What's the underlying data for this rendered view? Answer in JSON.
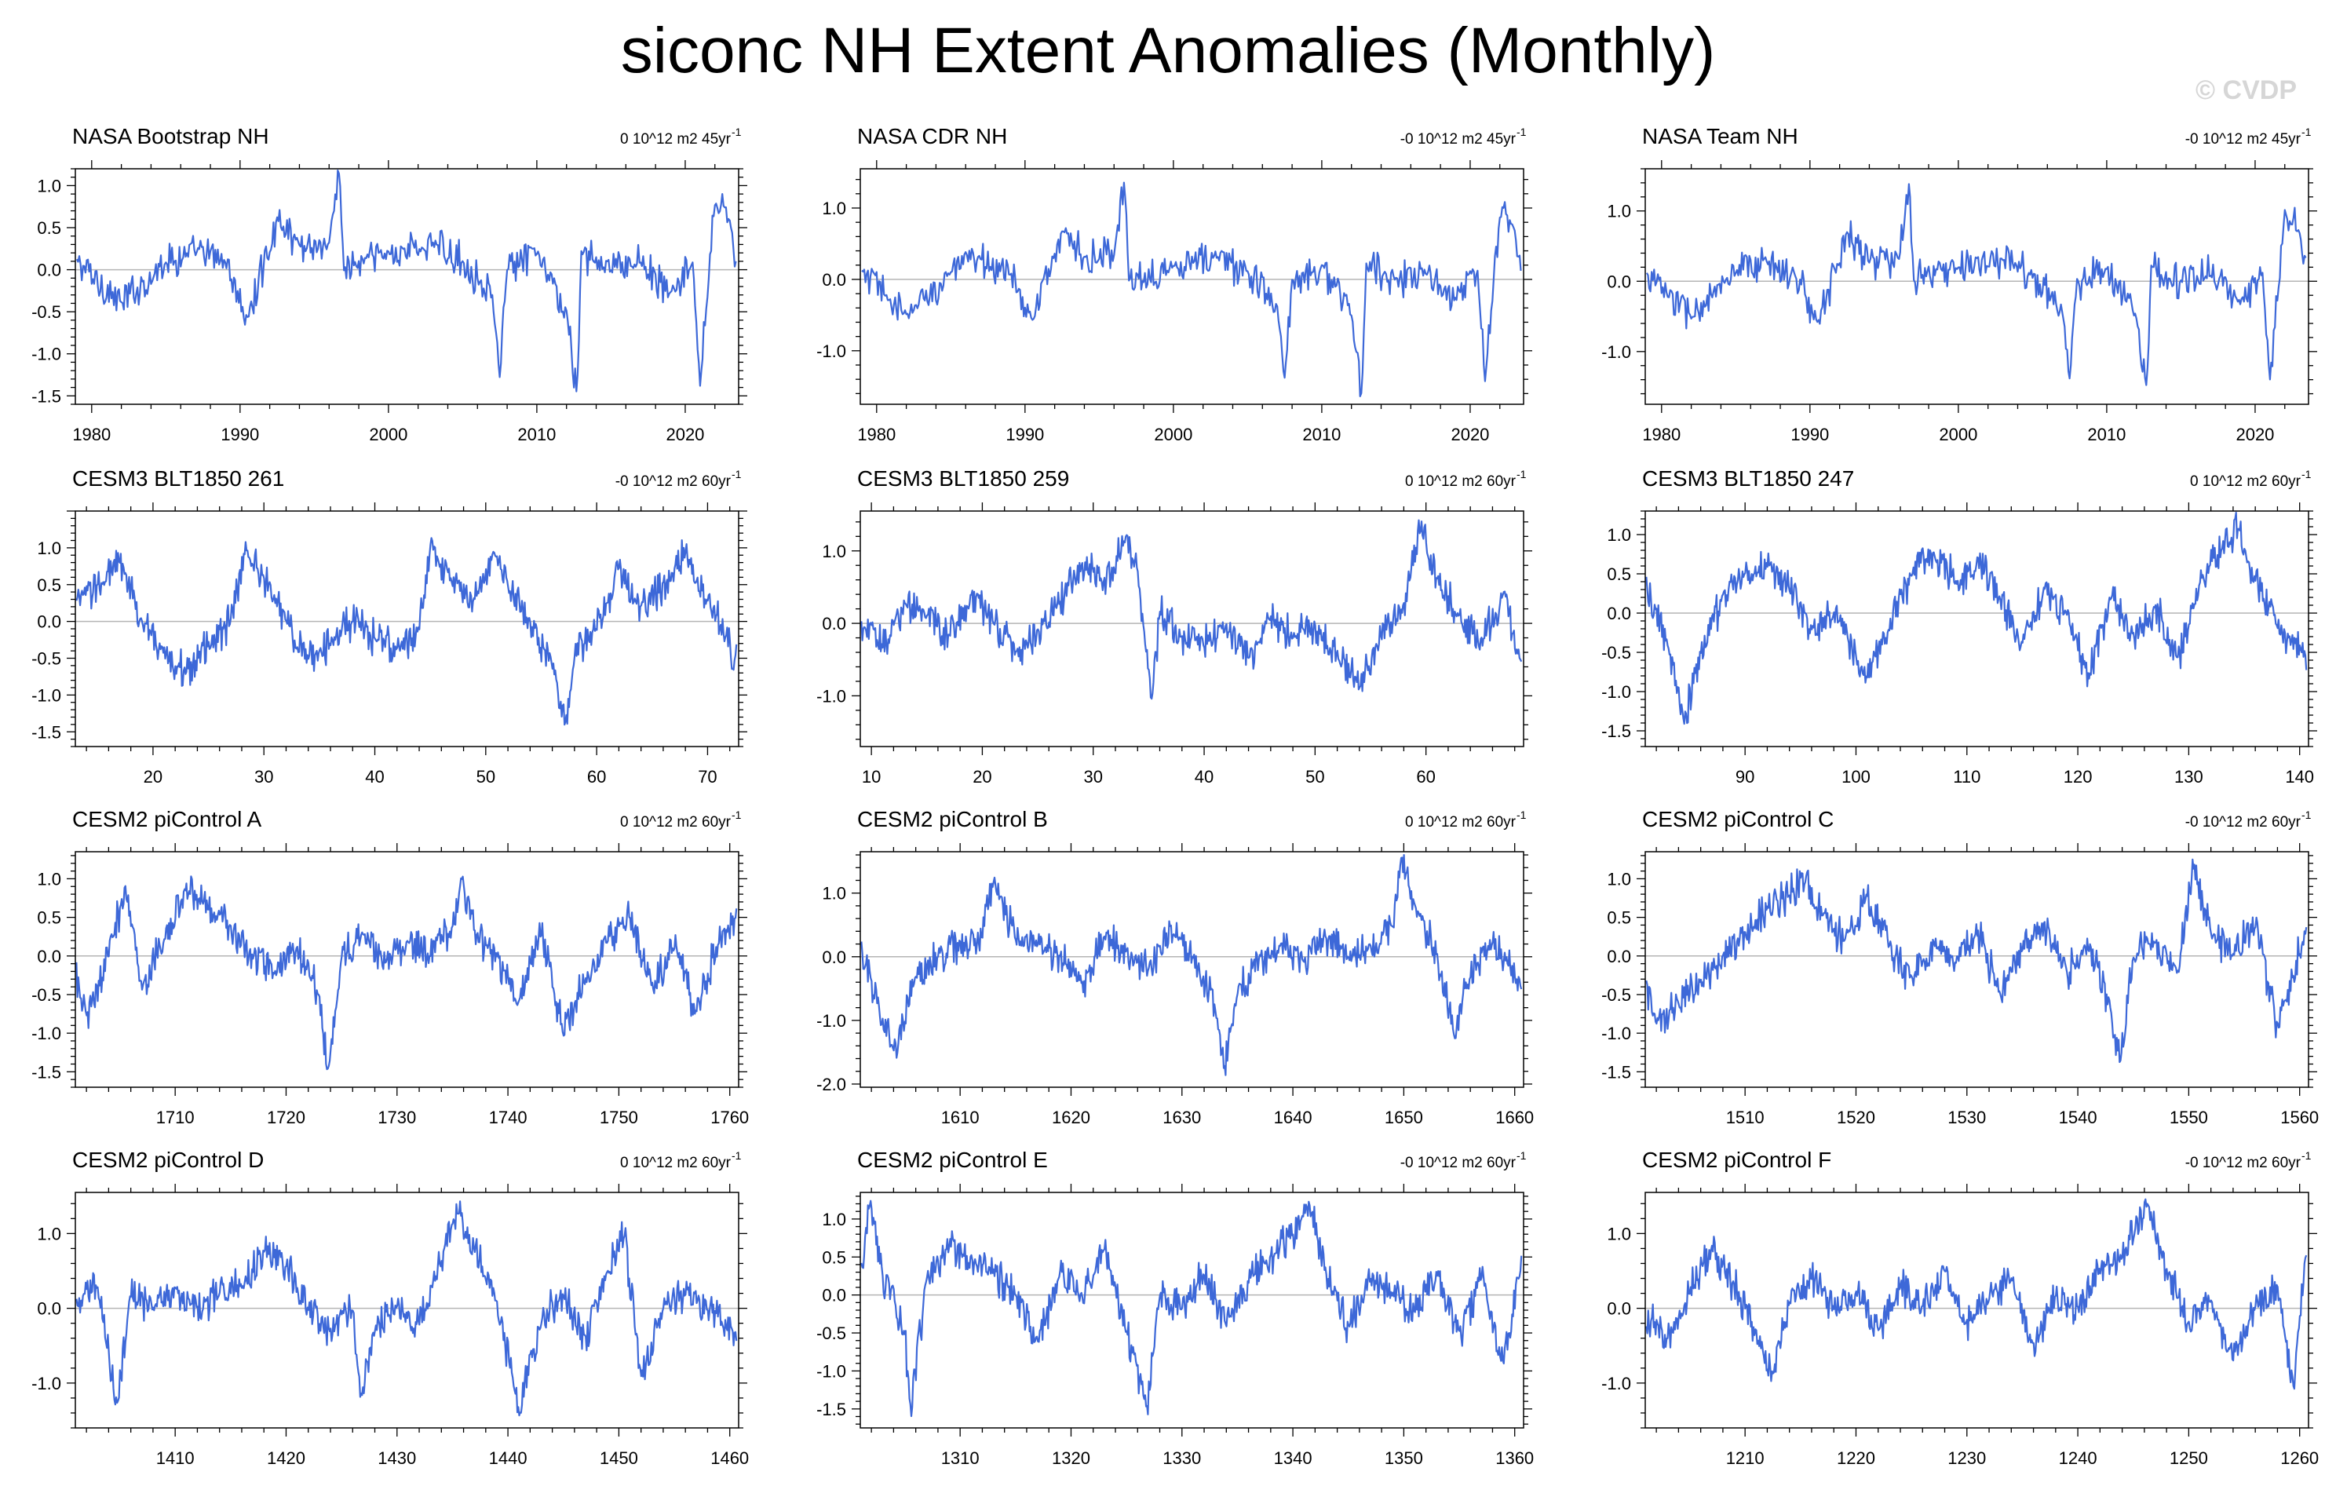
{
  "title": "siconc NH Extent Anomalies (Monthly)",
  "watermark": "© CVDP",
  "colors": {
    "line": "#3d68d8",
    "frame": "#000000",
    "zero": "#b4b4b4"
  },
  "chart_data": [
    {
      "type": "line",
      "title": "NASA Bootstrap NH",
      "trend": "0 10^12 m2 45yr",
      "trend_sup": "-1",
      "xlim": [
        1978.9,
        2023.6
      ],
      "ylim": [
        -1.6,
        1.2
      ],
      "xticks": [
        1980,
        1990,
        2000,
        2010,
        2020
      ],
      "xtick_labels": [
        "1980",
        "1990",
        "2000",
        "2010",
        "2020"
      ],
      "yticks": [
        -1.5,
        -1.0,
        -0.5,
        0.0,
        0.5,
        1.0
      ],
      "ytick_labels": [
        "-1.5",
        "-1.0",
        "-0.5",
        "0.0",
        "0.5",
        "1.0"
      ],
      "x": [
        1979,
        1982,
        1985,
        1987,
        1989,
        1990.5,
        1992.5,
        1994,
        1996,
        1996.7,
        1997,
        2000,
        2003,
        2005,
        2007,
        2007.5,
        2008,
        2010,
        2012,
        2012.7,
        2013,
        2015,
        2017,
        2019,
        2020.5,
        2021,
        2022,
        2023,
        2023.5
      ],
      "y": [
        0.1,
        -0.4,
        0.1,
        0.2,
        0.1,
        -0.6,
        0.6,
        0.3,
        0.3,
        1.2,
        0.0,
        0.2,
        0.3,
        0.1,
        -0.3,
        -1.3,
        0.0,
        0.2,
        -0.5,
        -1.5,
        0.2,
        0.0,
        0.1,
        -0.3,
        0.1,
        -1.4,
        0.8,
        0.6,
        0.0
      ]
    },
    {
      "type": "line",
      "title": "NASA CDR NH",
      "trend": "-0 10^12 m2 45yr",
      "trend_sup": "-1",
      "xlim": [
        1978.9,
        2023.6
      ],
      "ylim": [
        -1.75,
        1.55
      ],
      "xticks": [
        1980,
        1990,
        2000,
        2010,
        2020
      ],
      "xtick_labels": [
        "1980",
        "1990",
        "2000",
        "2010",
        "2020"
      ],
      "yticks": [
        -1.0,
        0.0,
        1.0
      ],
      "ytick_labels": [
        "-1.0",
        "0.0",
        "1.0"
      ],
      "x": [
        1979,
        1982,
        1985,
        1987,
        1989,
        1990.5,
        1992.5,
        1994,
        1996,
        1996.7,
        1997,
        2000,
        2003,
        2005,
        2007,
        2007.5,
        2008,
        2010,
        2012,
        2012.7,
        2013,
        2015,
        2017,
        2019,
        2020.5,
        2021,
        2022,
        2023,
        2023.5
      ],
      "y": [
        0.1,
        -0.5,
        0.1,
        0.3,
        0.1,
        -0.6,
        0.7,
        0.3,
        0.3,
        1.4,
        0.0,
        0.2,
        0.3,
        0.1,
        -0.4,
        -1.4,
        0.0,
        0.2,
        -0.5,
        -1.6,
        0.2,
        0.0,
        0.1,
        -0.3,
        0.1,
        -1.4,
        0.9,
        0.7,
        0.0
      ]
    },
    {
      "type": "line",
      "title": "NASA Team NH",
      "trend": "-0 10^12 m2 45yr",
      "trend_sup": "-1",
      "xlim": [
        1978.9,
        2023.6
      ],
      "ylim": [
        -1.75,
        1.6
      ],
      "xticks": [
        1980,
        1990,
        2000,
        2010,
        2020
      ],
      "xtick_labels": [
        "1980",
        "1990",
        "2000",
        "2010",
        "2020"
      ],
      "yticks": [
        -1.0,
        0.0,
        1.0
      ],
      "ytick_labels": [
        "-1.0",
        "0.0",
        "1.0"
      ],
      "x": [
        1979,
        1982,
        1985,
        1987,
        1989,
        1990.5,
        1992.5,
        1994,
        1996,
        1996.7,
        1997,
        2000,
        2003,
        2005,
        2007,
        2007.5,
        2008,
        2010,
        2012,
        2012.7,
        2013,
        2015,
        2017,
        2019,
        2020.5,
        2021,
        2022,
        2023,
        2023.5
      ],
      "y": [
        0.1,
        -0.5,
        0.1,
        0.3,
        0.1,
        -0.6,
        0.7,
        0.3,
        0.3,
        1.4,
        0.0,
        0.2,
        0.3,
        0.1,
        -0.4,
        -1.4,
        0.0,
        0.2,
        -0.5,
        -1.5,
        0.2,
        0.0,
        0.1,
        -0.3,
        0.1,
        -1.4,
        1.0,
        0.7,
        0.2
      ]
    },
    {
      "type": "line",
      "title": "CESM3 BLT1850 261",
      "trend": "-0 10^12 m2 60yr",
      "trend_sup": "-1",
      "xlim": [
        13,
        72.8
      ],
      "ylim": [
        -1.7,
        1.5
      ],
      "xticks": [
        20,
        30,
        40,
        50,
        60,
        70
      ],
      "xtick_labels": [
        "20",
        "30",
        "40",
        "50",
        "60",
        "70"
      ],
      "yticks": [
        -1.5,
        -1.0,
        -0.5,
        0.0,
        0.5,
        1.0
      ],
      "ytick_labels": [
        "-1.5",
        "-1.0",
        "-0.5",
        "0.0",
        "0.5",
        "1.0"
      ],
      "x": [
        13,
        15,
        17,
        19,
        21,
        23,
        25,
        27,
        28.5,
        30,
        32,
        34,
        36,
        38,
        40,
        42,
        44,
        45,
        47,
        49,
        51,
        52,
        54,
        56,
        57.2,
        58,
        60,
        62,
        64,
        66,
        68,
        70,
        72.5
      ],
      "y": [
        0.2,
        0.5,
        0.8,
        0.0,
        -0.4,
        -0.7,
        -0.3,
        0.0,
        1.0,
        0.6,
        0.0,
        -0.5,
        -0.3,
        0.0,
        -0.2,
        -0.4,
        -0.1,
        1.0,
        0.5,
        0.3,
        0.9,
        0.5,
        0.0,
        -0.6,
        -1.4,
        -0.5,
        -0.1,
        0.7,
        0.2,
        0.5,
        0.9,
        0.3,
        -0.5
      ]
    },
    {
      "type": "line",
      "title": "CESM3 BLT1850 259",
      "trend": "0 10^12 m2 60yr",
      "trend_sup": "-1",
      "xlim": [
        9,
        68.8
      ],
      "ylim": [
        -1.7,
        1.55
      ],
      "xticks": [
        10,
        20,
        30,
        40,
        50,
        60
      ],
      "xtick_labels": [
        "10",
        "20",
        "30",
        "40",
        "50",
        "60"
      ],
      "yticks": [
        -1.0,
        0.0,
        1.0
      ],
      "ytick_labels": [
        "-1.0",
        "0.0",
        "1.0"
      ],
      "x": [
        9,
        11,
        13,
        15,
        17,
        19,
        21,
        23,
        25,
        27,
        29,
        31,
        33,
        34,
        35.3,
        36,
        38,
        40,
        42,
        44,
        46,
        48,
        50,
        52,
        54,
        56,
        58,
        59.5,
        61,
        63,
        65,
        67,
        68.5
      ],
      "y": [
        0.0,
        -0.3,
        0.3,
        0.1,
        -0.2,
        0.4,
        0.0,
        -0.4,
        -0.1,
        0.3,
        0.8,
        0.6,
        1.2,
        0.7,
        -1.1,
        0.2,
        -0.2,
        -0.3,
        0.0,
        -0.5,
        0.1,
        -0.2,
        0.0,
        -0.4,
        -0.9,
        -0.2,
        0.3,
        1.3,
        0.6,
        0.1,
        -0.2,
        0.4,
        -0.5
      ]
    },
    {
      "type": "line",
      "title": "CESM3 BLT1850 247",
      "trend": "0 10^12 m2 60yr",
      "trend_sup": "-1",
      "xlim": [
        81,
        140.8
      ],
      "ylim": [
        -1.7,
        1.3
      ],
      "xticks": [
        90,
        100,
        110,
        120,
        130,
        140
      ],
      "xtick_labels": [
        "90",
        "100",
        "110",
        "120",
        "130",
        "140"
      ],
      "yticks": [
        -1.5,
        -1.0,
        -0.5,
        0.0,
        0.5,
        1.0
      ],
      "ytick_labels": [
        "-1.5",
        "-1.0",
        "-0.5",
        "0.0",
        "0.5",
        "1.0"
      ],
      "x": [
        81,
        83,
        84.5,
        86,
        88,
        90,
        92,
        94,
        96,
        98,
        101,
        103,
        105,
        107,
        109,
        111,
        113,
        115,
        117,
        119,
        121,
        123,
        125,
        127,
        129,
        131,
        133,
        134.5,
        136,
        138,
        140.5
      ],
      "y": [
        0.3,
        -0.4,
        -1.4,
        -0.5,
        0.2,
        0.5,
        0.6,
        0.3,
        -0.2,
        0.0,
        -0.8,
        -0.2,
        0.5,
        0.8,
        0.4,
        0.7,
        0.2,
        -0.4,
        0.3,
        0.0,
        -0.8,
        0.2,
        -0.3,
        0.1,
        -0.6,
        0.4,
        0.8,
        1.1,
        0.4,
        -0.2,
        -0.5
      ]
    },
    {
      "type": "line",
      "title": "CESM2 piControl A",
      "trend": "0 10^12 m2 60yr",
      "trend_sup": "-1",
      "xlim": [
        1701,
        1760.8
      ],
      "ylim": [
        -1.7,
        1.35
      ],
      "xticks": [
        1710,
        1720,
        1730,
        1740,
        1750,
        1760
      ],
      "xtick_labels": [
        "1710",
        "1720",
        "1730",
        "1740",
        "1750",
        "1760"
      ],
      "yticks": [
        -1.5,
        -1.0,
        -0.5,
        0.0,
        0.5,
        1.0
      ],
      "ytick_labels": [
        "-1.5",
        "-1.0",
        "-0.5",
        "0.0",
        "0.5",
        "1.0"
      ],
      "x": [
        1701,
        1702,
        1704,
        1705.5,
        1707,
        1709,
        1711,
        1713,
        1715,
        1717,
        1719,
        1721,
        1723,
        1723.8,
        1725,
        1727,
        1729,
        1731,
        1733,
        1735,
        1735.8,
        1737,
        1739,
        1741,
        1743,
        1745,
        1747,
        1749,
        1751,
        1753,
        1755,
        1757,
        1759,
        1760.5
      ],
      "y": [
        -0.2,
        -0.8,
        0.0,
        0.9,
        -0.4,
        0.2,
        0.9,
        0.6,
        0.4,
        0.0,
        -0.2,
        0.1,
        -0.5,
        -1.5,
        0.0,
        0.3,
        -0.1,
        0.2,
        0.0,
        0.4,
        1.0,
        0.3,
        0.0,
        -0.6,
        0.3,
        -1.0,
        -0.3,
        0.2,
        0.5,
        -0.4,
        0.1,
        -0.7,
        0.2,
        0.5
      ]
    },
    {
      "type": "line",
      "title": "CESM2 piControl B",
      "trend": "0 10^12 m2 60yr",
      "trend_sup": "-1",
      "xlim": [
        1601,
        1660.8
      ],
      "ylim": [
        -2.05,
        1.65
      ],
      "xticks": [
        1610,
        1620,
        1630,
        1640,
        1650,
        1660
      ],
      "xtick_labels": [
        "1610",
        "1620",
        "1630",
        "1640",
        "1650",
        "1660"
      ],
      "yticks": [
        -2.0,
        -1.0,
        0.0,
        1.0
      ],
      "ytick_labels": [
        "-2.0",
        "-1.0",
        "0.0",
        "1.0"
      ],
      "x": [
        1601,
        1602,
        1604,
        1606,
        1608,
        1610,
        1612,
        1613,
        1615,
        1617,
        1619,
        1621,
        1623,
        1625,
        1627,
        1629,
        1631,
        1633,
        1633.8,
        1635,
        1637,
        1639,
        1641,
        1643,
        1645,
        1647,
        1649,
        1649.8,
        1651,
        1653,
        1654.5,
        1656,
        1658,
        1660.5
      ],
      "y": [
        0.1,
        -0.4,
        -1.5,
        -0.3,
        0.0,
        0.2,
        0.3,
        1.2,
        0.3,
        0.2,
        0.0,
        -0.4,
        0.3,
        0.1,
        -0.2,
        0.5,
        0.0,
        -0.8,
        -1.8,
        -0.6,
        0.0,
        0.2,
        -0.1,
        0.3,
        0.0,
        0.2,
        0.5,
        1.6,
        0.8,
        0.0,
        -1.2,
        -0.3,
        0.2,
        -0.4
      ]
    },
    {
      "type": "line",
      "title": "CESM2 piControl C",
      "trend": "-0 10^12 m2 60yr",
      "trend_sup": "-1",
      "xlim": [
        1501,
        1560.8
      ],
      "ylim": [
        -1.7,
        1.35
      ],
      "xticks": [
        1510,
        1520,
        1530,
        1540,
        1550,
        1560
      ],
      "xtick_labels": [
        "1510",
        "1520",
        "1530",
        "1540",
        "1550",
        "1560"
      ],
      "yticks": [
        -1.5,
        -1.0,
        -0.5,
        0.0,
        0.5,
        1.0
      ],
      "ytick_labels": [
        "-1.5",
        "-1.0",
        "-0.5",
        "0.0",
        "0.5",
        "1.0"
      ],
      "x": [
        1501,
        1502,
        1504,
        1506,
        1508,
        1510,
        1512,
        1514,
        1515.5,
        1517,
        1519,
        1521,
        1523,
        1525,
        1527,
        1529,
        1531,
        1533,
        1535,
        1537,
        1539,
        1541,
        1543,
        1543.8,
        1545,
        1547,
        1549,
        1550.5,
        1552,
        1554,
        1556,
        1558,
        1560.5
      ],
      "y": [
        -0.4,
        -0.9,
        -0.6,
        -0.3,
        0.0,
        0.3,
        0.6,
        0.8,
        1.0,
        0.5,
        0.2,
        0.8,
        0.1,
        -0.3,
        0.2,
        -0.1,
        0.3,
        -0.5,
        0.1,
        0.4,
        -0.2,
        0.1,
        -0.7,
        -1.4,
        0.0,
        0.2,
        -0.2,
        1.2,
        0.3,
        0.0,
        0.4,
        -0.9,
        0.3
      ]
    },
    {
      "type": "line",
      "title": "CESM2 piControl D",
      "trend": "0 10^12 m2 60yr",
      "trend_sup": "-1",
      "xlim": [
        1401,
        1460.8
      ],
      "ylim": [
        -1.6,
        1.55
      ],
      "xticks": [
        1410,
        1420,
        1430,
        1440,
        1450,
        1460
      ],
      "xtick_labels": [
        "1410",
        "1420",
        "1430",
        "1440",
        "1450",
        "1460"
      ],
      "yticks": [
        -1.0,
        0.0,
        1.0
      ],
      "ytick_labels": [
        "-1.0",
        "0.0",
        "1.0"
      ],
      "x": [
        1401,
        1403,
        1404.8,
        1406,
        1408,
        1410,
        1412,
        1414,
        1416,
        1418,
        1420,
        1422,
        1424,
        1426,
        1426.8,
        1428,
        1430,
        1432,
        1434,
        1435.5,
        1437,
        1438,
        1439,
        1441,
        1443,
        1445,
        1447,
        1449,
        1450.5,
        1452,
        1454,
        1456,
        1458,
        1460.5
      ],
      "y": [
        0.0,
        0.3,
        -1.3,
        0.2,
        0.0,
        0.3,
        0.0,
        0.2,
        0.3,
        0.8,
        0.6,
        0.0,
        -0.3,
        0.0,
        -1.2,
        -0.3,
        0.0,
        -0.2,
        0.6,
        1.3,
        0.8,
        0.4,
        0.1,
        -1.4,
        -0.2,
        0.2,
        -0.4,
        0.5,
        1.0,
        -0.9,
        0.0,
        0.2,
        0.0,
        -0.3
      ]
    },
    {
      "type": "line",
      "title": "CESM2 piControl E",
      "trend": "-0 10^12 m2 60yr",
      "trend_sup": "-1",
      "xlim": [
        1301,
        1360.8
      ],
      "ylim": [
        -1.75,
        1.35
      ],
      "xticks": [
        1310,
        1320,
        1330,
        1340,
        1350,
        1360
      ],
      "xtick_labels": [
        "1310",
        "1320",
        "1330",
        "1340",
        "1350",
        "1360"
      ],
      "yticks": [
        -1.5,
        -1.0,
        -0.5,
        0.0,
        0.5,
        1.0
      ],
      "ytick_labels": [
        "-1.5",
        "-1.0",
        "-0.5",
        "0.0",
        "0.5",
        "1.0"
      ],
      "x": [
        1301,
        1301.8,
        1303,
        1305,
        1305.5,
        1307,
        1309,
        1311,
        1313,
        1315,
        1317,
        1319,
        1321,
        1323,
        1325,
        1326.8,
        1328,
        1330,
        1332,
        1334,
        1336,
        1338,
        1340,
        1341.5,
        1343,
        1345,
        1347,
        1349,
        1351,
        1353,
        1355,
        1357,
        1359,
        1360.5
      ],
      "y": [
        0.0,
        1.2,
        0.3,
        -0.5,
        -1.5,
        0.2,
        0.6,
        0.5,
        0.3,
        0.0,
        -0.6,
        0.3,
        0.0,
        0.6,
        -0.5,
        -1.5,
        0.0,
        -0.2,
        0.3,
        -0.4,
        0.2,
        0.5,
        0.8,
        1.2,
        0.3,
        -0.4,
        0.2,
        0.0,
        -0.2,
        0.3,
        -0.5,
        0.2,
        -0.9,
        0.3
      ]
    },
    {
      "type": "line",
      "title": "CESM2 piControl F",
      "trend": "-0 10^12 m2 60yr",
      "trend_sup": "-1",
      "xlim": [
        1201,
        1260.8
      ],
      "ylim": [
        -1.6,
        1.55
      ],
      "xticks": [
        1210,
        1220,
        1230,
        1240,
        1250,
        1260
      ],
      "xtick_labels": [
        "1210",
        "1220",
        "1230",
        "1240",
        "1250",
        "1260"
      ],
      "yticks": [
        -1.0,
        0.0,
        1.0
      ],
      "ytick_labels": [
        "-1.0",
        "0.0",
        "1.0"
      ],
      "x": [
        1201,
        1203,
        1205,
        1207,
        1209,
        1211,
        1212.5,
        1214,
        1216,
        1218,
        1220,
        1222,
        1224,
        1226,
        1228,
        1230,
        1232,
        1234,
        1236,
        1238,
        1240,
        1242,
        1244,
        1246.3,
        1248,
        1250,
        1252,
        1254,
        1256,
        1258,
        1259.5,
        1260.5
      ],
      "y": [
        -0.1,
        -0.4,
        0.2,
        0.8,
        0.3,
        -0.3,
        -0.9,
        0.1,
        0.4,
        0.0,
        0.2,
        -0.3,
        0.3,
        0.0,
        0.5,
        -0.2,
        0.1,
        0.4,
        -0.5,
        0.2,
        0.0,
        0.5,
        0.7,
        1.4,
        0.5,
        -0.2,
        0.1,
        -0.7,
        0.0,
        0.3,
        -1.1,
        0.7
      ]
    }
  ]
}
